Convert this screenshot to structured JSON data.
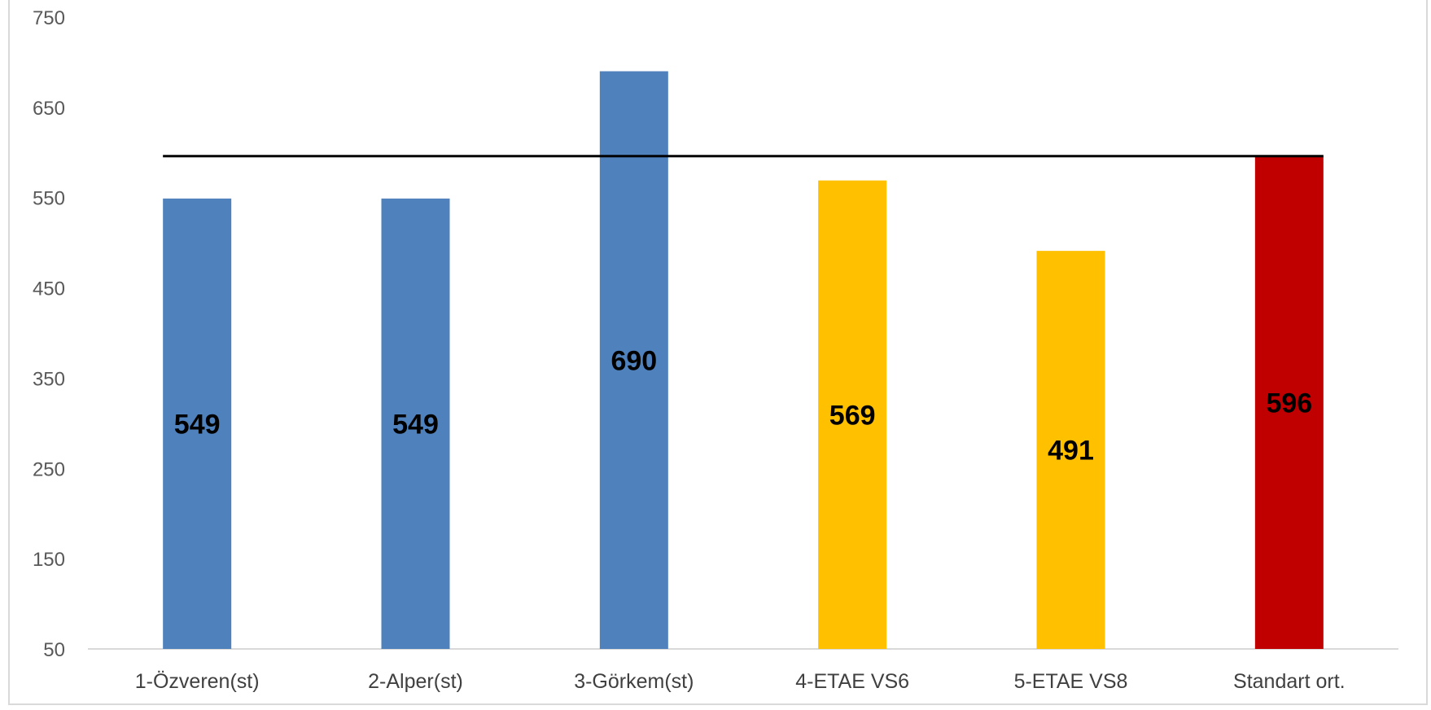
{
  "chart_data": {
    "type": "bar",
    "title": "",
    "xlabel": "",
    "ylabel": "",
    "categories": [
      "1-Özveren(st)",
      "2-Alper(st)",
      "3-Görkem(st)",
      "4-ETAE VS6",
      "5-ETAE VS8",
      "Standart ort."
    ],
    "values": [
      549,
      549,
      690,
      569,
      491,
      596
    ],
    "value_labels": [
      "549",
      "549",
      "690",
      "569",
      "491",
      "596"
    ],
    "bar_colors": [
      "#4f81bd",
      "#4f81bd",
      "#4f81bd",
      "#ffc000",
      "#ffc000",
      "#c00000"
    ],
    "reference_line": {
      "value": 596,
      "color": "#000000"
    },
    "ylim": [
      50,
      750
    ],
    "y_ticks": [
      50,
      150,
      250,
      350,
      450,
      550,
      650,
      750
    ],
    "grid": false,
    "legend": "none"
  }
}
